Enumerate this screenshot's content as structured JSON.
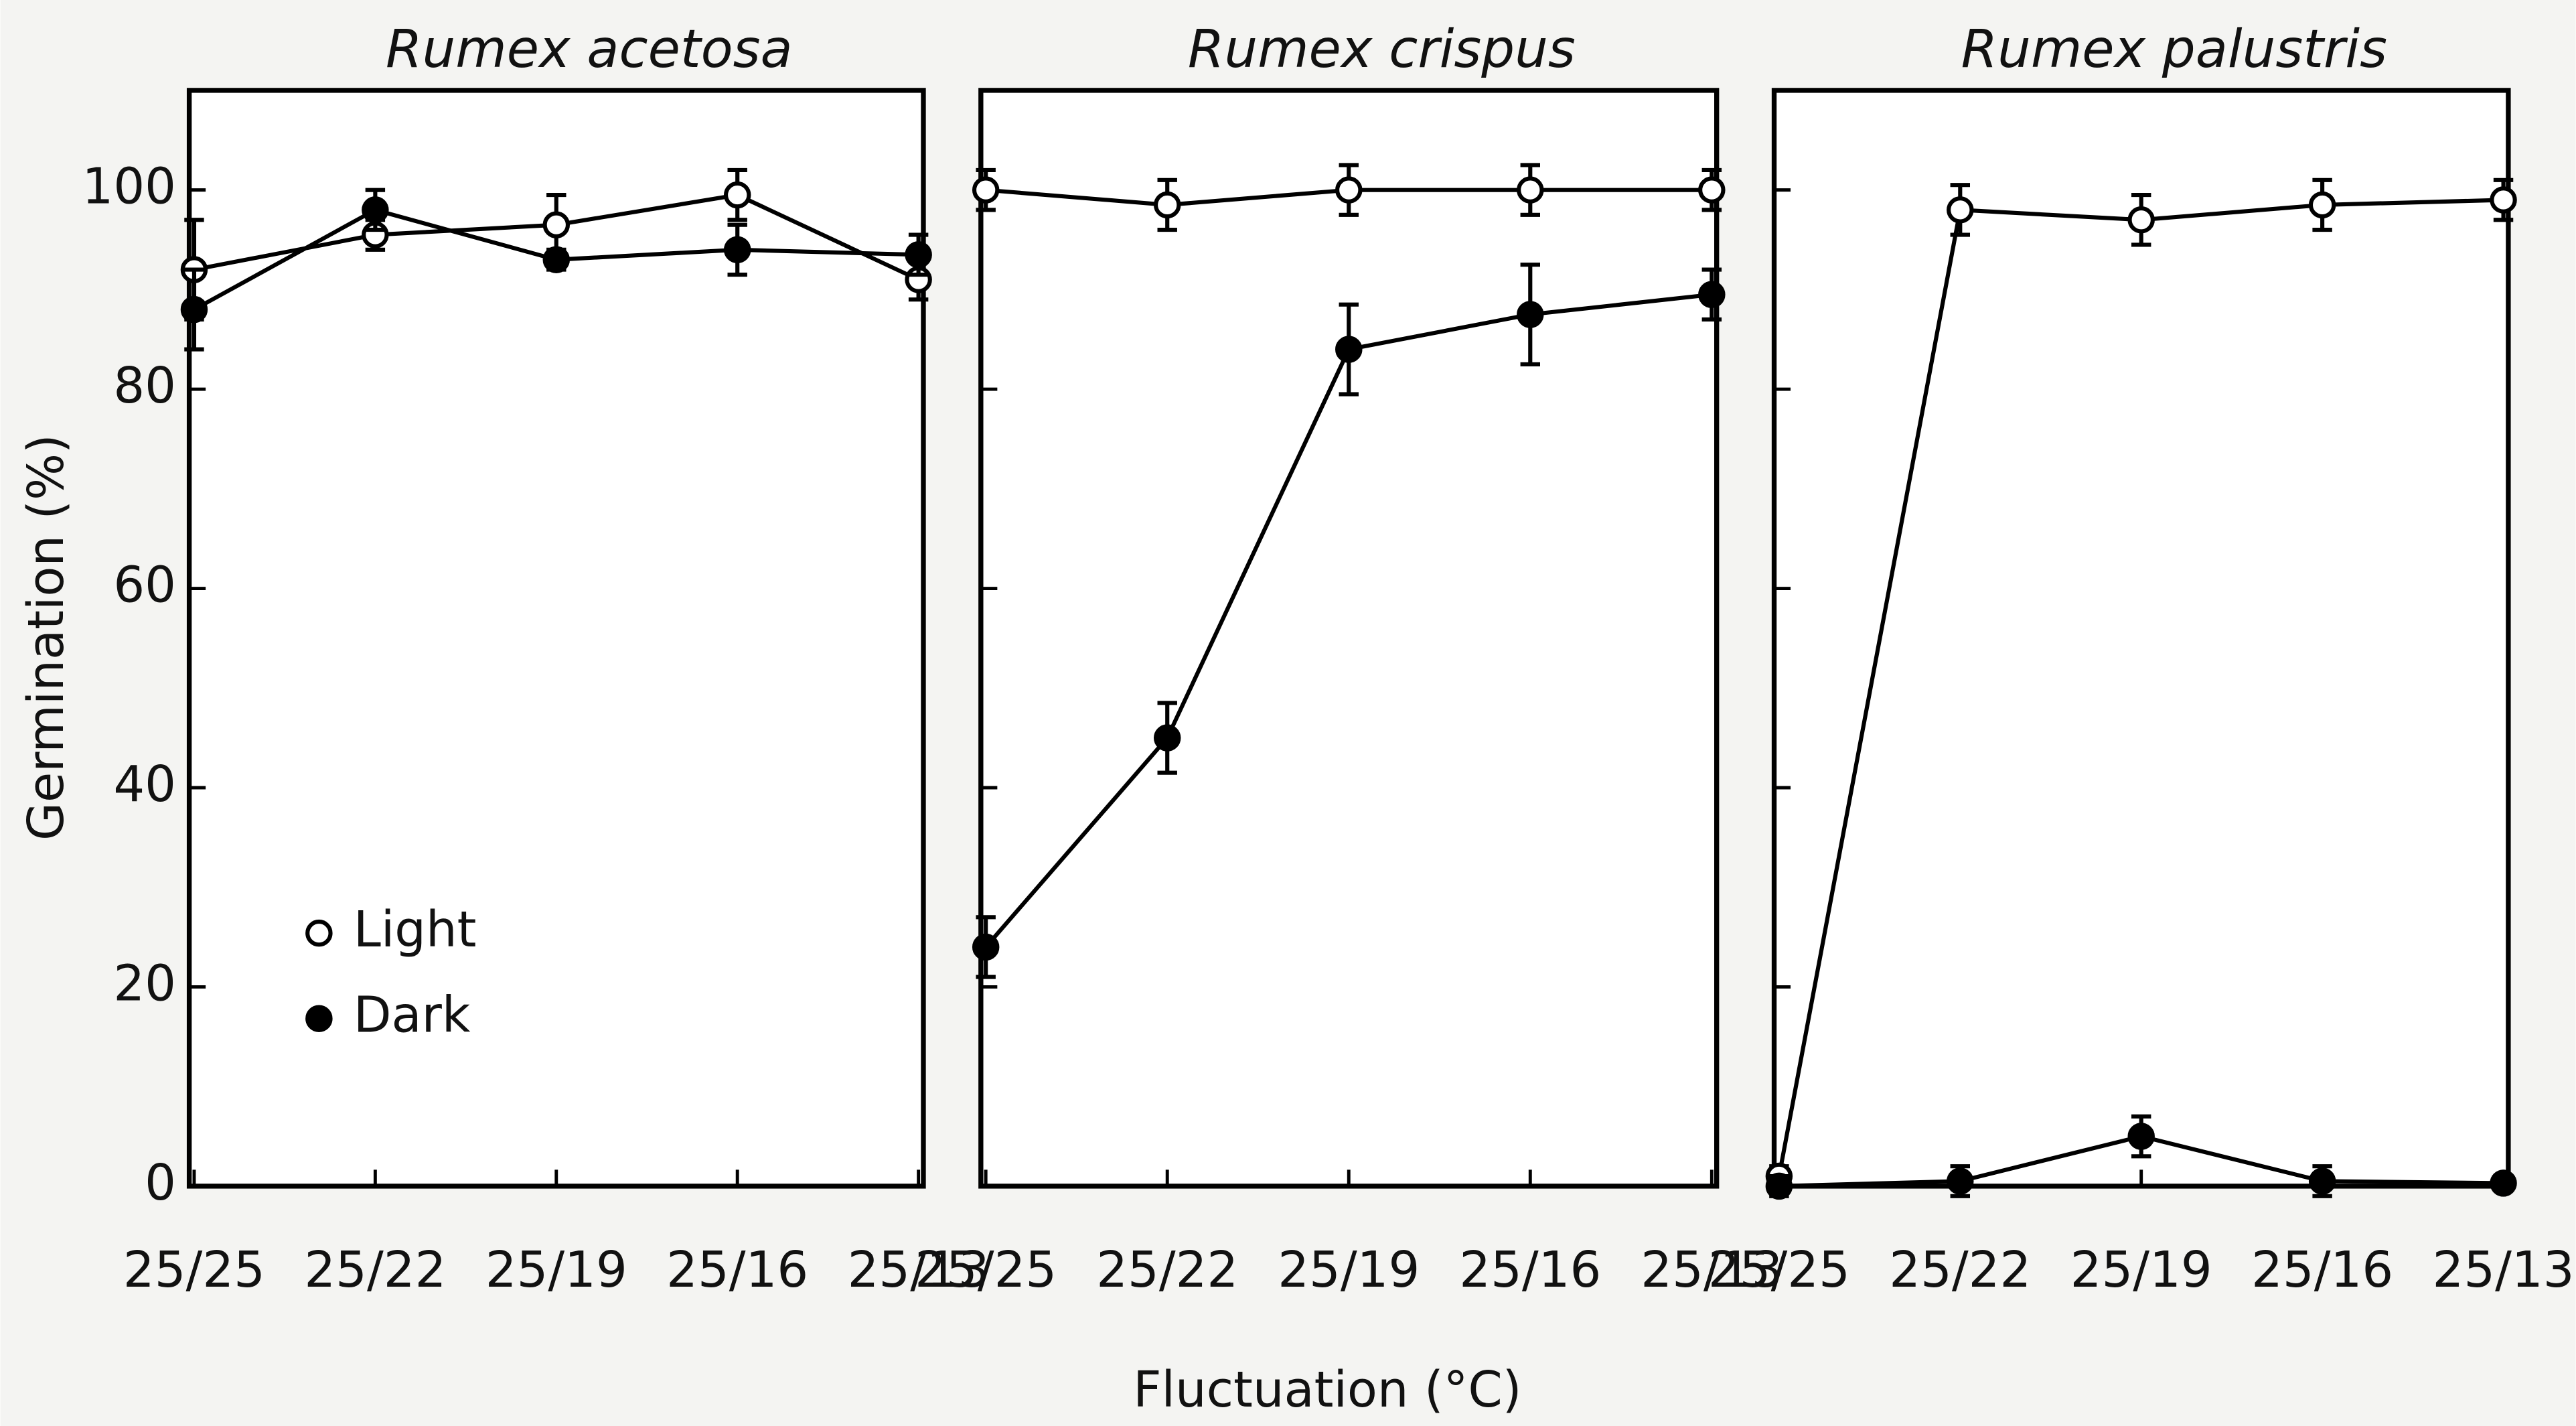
{
  "ylabel": "Germination (%)",
  "xlabel": "Fluctuation (°C)",
  "chart_data": [
    {
      "type": "line",
      "title": "Rumex acetosa",
      "categories": [
        "25/25",
        "25/22",
        "25/19",
        "25/16",
        "25/13"
      ],
      "ylim": [
        0,
        110
      ],
      "yticks": [
        0,
        20,
        40,
        60,
        80,
        100
      ],
      "series": [
        {
          "name": "Light",
          "color": "#ffffff",
          "values": [
            92,
            95.5,
            96.5,
            99.5,
            91
          ],
          "errors": [
            5,
            1.5,
            3,
            2.5,
            2
          ]
        },
        {
          "name": "Dark",
          "color": "#000000",
          "values": [
            88,
            98,
            93,
            94,
            93.5
          ],
          "errors": [
            4,
            2,
            1,
            2.5,
            2
          ]
        }
      ]
    },
    {
      "type": "line",
      "title": "Rumex crispus",
      "categories": [
        "25/25",
        "25/22",
        "25/19",
        "25/16",
        "25/13"
      ],
      "ylim": [
        0,
        110
      ],
      "yticks": [
        0,
        20,
        40,
        60,
        80,
        100
      ],
      "series": [
        {
          "name": "Light",
          "color": "#ffffff",
          "values": [
            100,
            98.5,
            100,
            100,
            100
          ],
          "errors": [
            2,
            2.5,
            2.5,
            2.5,
            2
          ]
        },
        {
          "name": "Dark",
          "color": "#000000",
          "values": [
            24,
            45,
            84,
            87.5,
            89.5
          ],
          "errors": [
            3,
            3.5,
            4.5,
            5,
            2.5
          ]
        }
      ]
    },
    {
      "type": "line",
      "title": "Rumex palustris",
      "categories": [
        "25/25",
        "25/22",
        "25/19",
        "25/16",
        "25/13"
      ],
      "ylim": [
        0,
        110
      ],
      "yticks": [
        0,
        20,
        40,
        60,
        80,
        100
      ],
      "series": [
        {
          "name": "Light",
          "color": "#ffffff",
          "values": [
            1,
            98,
            97,
            98.5,
            99
          ],
          "errors": [
            1,
            2.5,
            2.5,
            2.5,
            2
          ]
        },
        {
          "name": "Dark",
          "color": "#000000",
          "values": [
            0,
            0.5,
            5,
            0.5,
            0.3
          ],
          "errors": [
            1,
            1.5,
            2,
            1.5,
            0.5
          ]
        }
      ]
    }
  ]
}
